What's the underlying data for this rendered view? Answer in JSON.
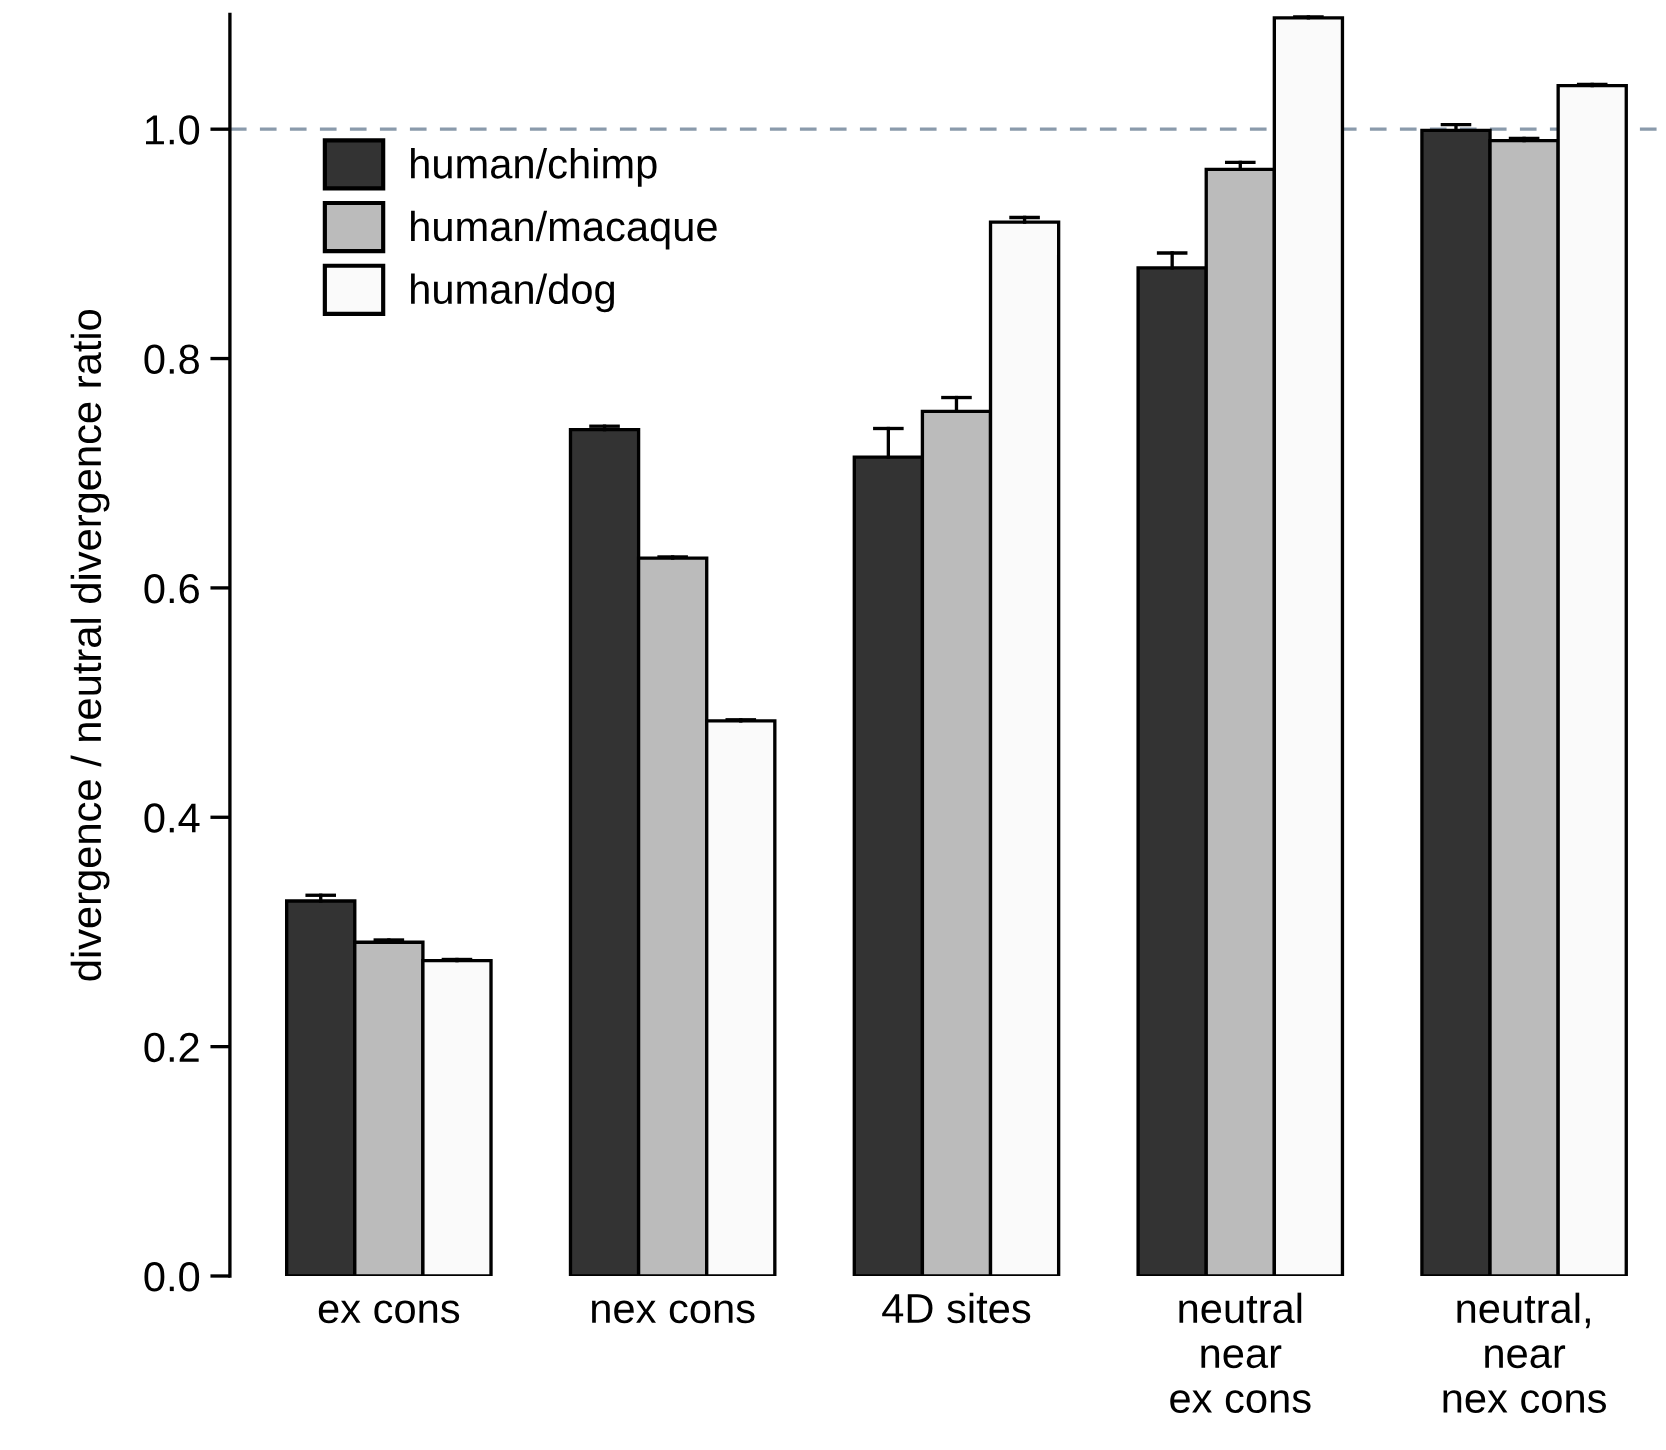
{
  "chart_data": {
    "type": "bar",
    "ylabel": "divergence / neutral divergence ratio",
    "categories": [
      "ex cons",
      "nex cons",
      "4D sites",
      "neutral\nnear\nex cons",
      "neutral,\nnear\nnex cons"
    ],
    "series": [
      {
        "name": "human/chimp",
        "color": "#333333",
        "values": [
          0.327,
          0.738,
          0.714,
          0.879,
          0.999
        ],
        "errors": [
          [
            0.327,
            0.332
          ],
          [
            0.738,
            0.741
          ],
          [
            0.714,
            0.739
          ],
          [
            0.879,
            0.892
          ],
          [
            0.999,
            1.004
          ]
        ]
      },
      {
        "name": "human/macaque",
        "color": "#bbbbbb",
        "values": [
          0.291,
          0.626,
          0.754,
          0.965,
          0.99
        ],
        "errors": [
          [
            0.291,
            0.293
          ],
          [
            0.626,
            0.627
          ],
          [
            0.754,
            0.766
          ],
          [
            0.965,
            0.971
          ],
          [
            0.99,
            0.992
          ]
        ]
      },
      {
        "name": "human/dog",
        "color": "#fafafa",
        "values": [
          0.275,
          0.484,
          0.919,
          1.097,
          1.038
        ],
        "errors": [
          [
            0.275,
            0.276
          ],
          [
            0.484,
            0.485
          ],
          [
            0.919,
            0.923
          ],
          [
            1.097,
            1.098
          ],
          [
            1.038,
            1.039
          ]
        ]
      }
    ],
    "ylim": [
      0,
      1.1
    ],
    "yticks": [
      {
        "value": 0,
        "label": "0.0"
      },
      {
        "value": 0.2,
        "label": "0.2"
      },
      {
        "value": 0.4,
        "label": "0.4"
      },
      {
        "value": 0.6,
        "label": "0.6"
      },
      {
        "value": 0.8,
        "label": "0.8"
      },
      {
        "value": 1,
        "label": "1.0"
      }
    ],
    "ref_lines": [
      {
        "axis": "y",
        "value": 1,
        "color": "#8a9aab",
        "line_style": "dashed"
      }
    ],
    "grid": false,
    "legend": "top left"
  }
}
